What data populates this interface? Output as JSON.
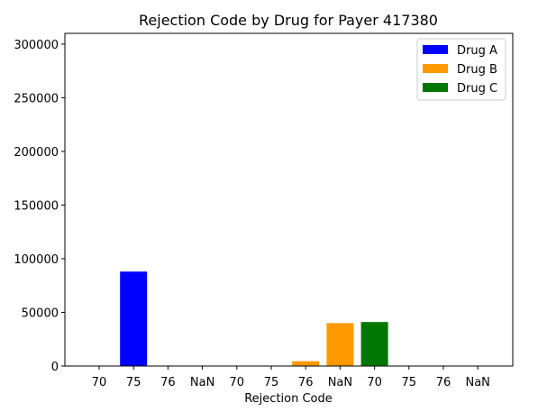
{
  "chart_data": {
    "type": "bar",
    "title": "Rejection Code by Drug for Payer 417380",
    "xlabel": "Rejection Code",
    "ylabel": "",
    "ylim": [
      0,
      310000
    ],
    "yticks": [
      0,
      50000,
      100000,
      150000,
      200000,
      250000,
      300000
    ],
    "categories": [
      "70",
      "75",
      "76",
      "NaN",
      "70",
      "75",
      "76",
      "NaN",
      "70",
      "75",
      "76",
      "NaN"
    ],
    "series": [
      {
        "name": "Drug A",
        "color": "#0000ff",
        "values": [
          0,
          88000,
          0,
          0,
          0,
          0,
          0,
          0,
          0,
          0,
          0,
          0
        ]
      },
      {
        "name": "Drug B",
        "color": "#ff9900",
        "values": [
          0,
          0,
          0,
          0,
          0,
          0,
          4500,
          40000,
          0,
          0,
          0,
          0
        ]
      },
      {
        "name": "Drug C",
        "color": "#007700",
        "values": [
          0,
          0,
          0,
          0,
          0,
          0,
          0,
          0,
          41000,
          0,
          0,
          0
        ]
      }
    ],
    "legend_position": "top-right",
    "grid": false
  }
}
